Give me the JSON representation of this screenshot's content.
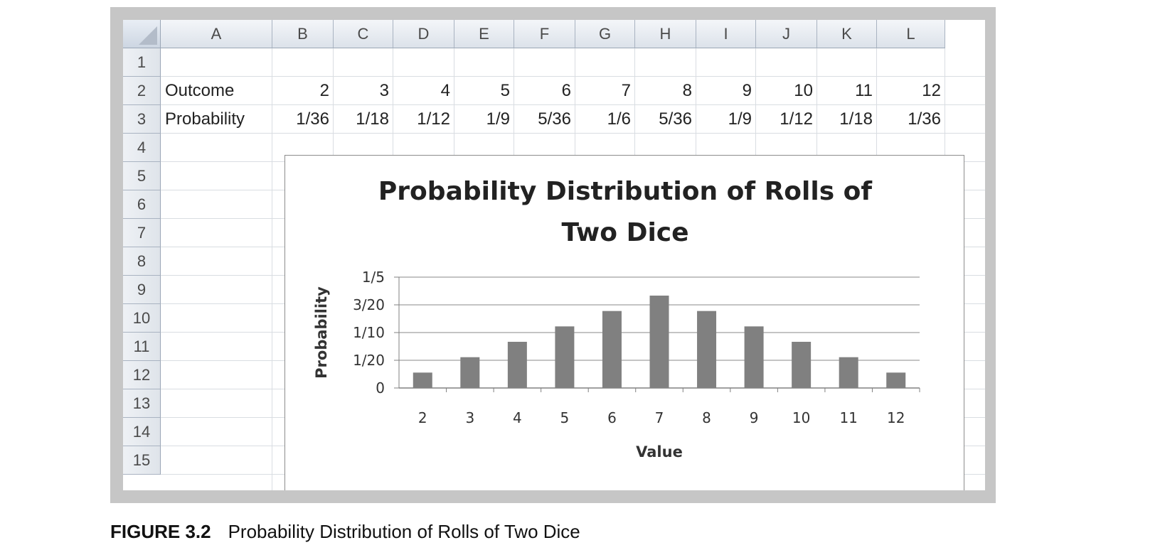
{
  "spreadsheet": {
    "columns": [
      "A",
      "B",
      "C",
      "D",
      "E",
      "F",
      "G",
      "H",
      "I",
      "J",
      "K",
      "L"
    ],
    "rows": [
      "1",
      "2",
      "3",
      "4",
      "5",
      "6",
      "7",
      "8",
      "9",
      "10",
      "11",
      "12",
      "13",
      "14",
      "15"
    ],
    "row2": {
      "label": "Outcome",
      "values": [
        "2",
        "3",
        "4",
        "5",
        "6",
        "7",
        "8",
        "9",
        "10",
        "11",
        "12"
      ]
    },
    "row3": {
      "label": "Probability",
      "values": [
        "1/36",
        "1/18",
        "1/12",
        "1/9",
        "5/36",
        "1/6",
        "5/36",
        "1/9",
        "1/12",
        "1/18",
        "1/36"
      ]
    }
  },
  "chart_data": {
    "type": "bar",
    "title_line1": "Probability Distribution of Rolls of",
    "title_line2": "Two Dice",
    "xlabel": "Value",
    "ylabel": "Probability",
    "categories": [
      "2",
      "3",
      "4",
      "5",
      "6",
      "7",
      "8",
      "9",
      "10",
      "11",
      "12"
    ],
    "values": [
      0.02778,
      0.05556,
      0.08333,
      0.11111,
      0.13889,
      0.16667,
      0.13889,
      0.11111,
      0.08333,
      0.05556,
      0.02778
    ],
    "ylim": [
      0,
      0.2
    ],
    "yticks": [
      0,
      0.05,
      0.1,
      0.15,
      0.2
    ],
    "ytick_labels": [
      "0",
      "1/20",
      "1/10",
      "3/20",
      "1/5"
    ],
    "grid": true,
    "legend": "none",
    "bar_color": "#808080"
  },
  "caption": {
    "figure": "FIGURE 3.2",
    "text": "Probability Distribution of Rolls of Two Dice"
  }
}
